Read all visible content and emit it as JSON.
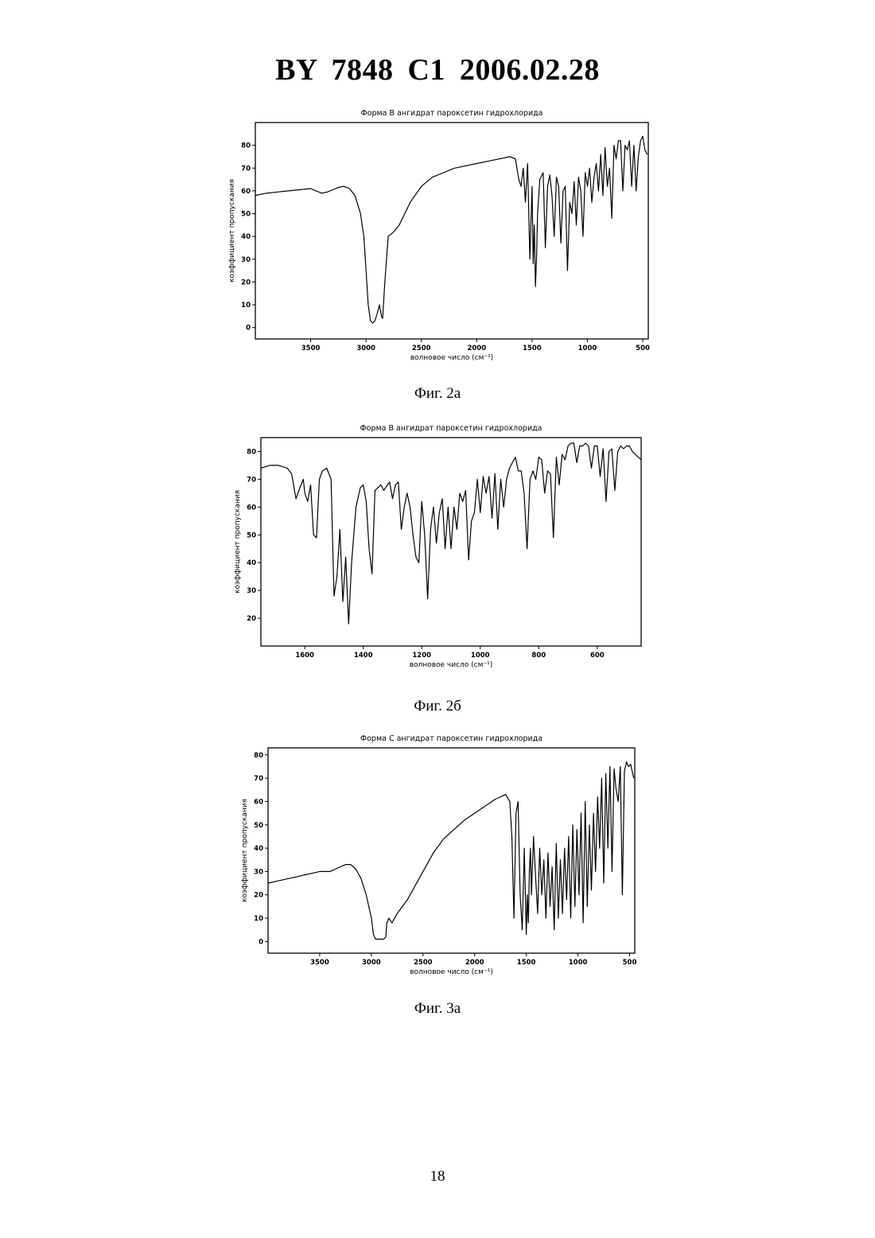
{
  "header": {
    "title": "BY  7848  C1  2006.02.28"
  },
  "page_number": "18",
  "figures": [
    {
      "caption": "Фиг. 2а"
    },
    {
      "caption": "Фиг. 2б"
    },
    {
      "caption": "Фиг. 3а"
    }
  ],
  "chart_data": [
    {
      "type": "line",
      "title": "Форма В ангидрат пароксетин гидрохлорида",
      "xlabel": "волновое число (см⁻¹)",
      "ylabel": "коэффициент пропускания",
      "xlim": [
        4000,
        450
      ],
      "ylim": [
        -5,
        90
      ],
      "x_ticks": [
        3500,
        3000,
        2500,
        2000,
        1500,
        1000,
        500
      ],
      "y_ticks": [
        0,
        10,
        20,
        30,
        40,
        50,
        60,
        70,
        80
      ],
      "grid": false,
      "series": [
        {
          "x": [
            4000,
            3900,
            3800,
            3700,
            3600,
            3500,
            3450,
            3400,
            3350,
            3300,
            3250,
            3200,
            3150,
            3100,
            3050,
            3020,
            3000,
            2980,
            2960,
            2940,
            2920,
            2900,
            2880,
            2860,
            2850,
            2830,
            2800,
            2750,
            2700,
            2650,
            2600,
            2500,
            2400,
            2300,
            2200,
            2100,
            2000,
            1900,
            1800,
            1700,
            1650,
            1620,
            1600,
            1580,
            1560,
            1540,
            1520,
            1500,
            1490,
            1480,
            1470,
            1460,
            1450,
            1430,
            1400,
            1380,
            1360,
            1340,
            1320,
            1300,
            1280,
            1260,
            1240,
            1220,
            1200,
            1180,
            1160,
            1140,
            1120,
            1100,
            1080,
            1060,
            1040,
            1020,
            1000,
            980,
            960,
            940,
            920,
            900,
            880,
            860,
            840,
            820,
            800,
            780,
            760,
            740,
            720,
            700,
            680,
            660,
            640,
            620,
            600,
            580,
            560,
            540,
            520,
            500,
            480,
            460
          ],
          "y": [
            58,
            59,
            59.5,
            60,
            60.5,
            61,
            60,
            59,
            59.5,
            60.5,
            61.5,
            62,
            61,
            58,
            50,
            40,
            25,
            10,
            3,
            2,
            3,
            6,
            10,
            5,
            4,
            20,
            40,
            42,
            45,
            50,
            55,
            62,
            66,
            68,
            70,
            71,
            72,
            73,
            74,
            75,
            74,
            65,
            62,
            70,
            55,
            72,
            30,
            62,
            28,
            45,
            18,
            30,
            50,
            65,
            68,
            35,
            62,
            67,
            58,
            40,
            66,
            62,
            37,
            60,
            62,
            25,
            55,
            50,
            64,
            45,
            66,
            60,
            40,
            68,
            62,
            70,
            55,
            66,
            72,
            60,
            76,
            58,
            79,
            62,
            70,
            48,
            80,
            74,
            82,
            82,
            60,
            80,
            78,
            82,
            62,
            80,
            60,
            75,
            82,
            84,
            78,
            76
          ]
        }
      ]
    },
    {
      "type": "line",
      "title": "Форма В ангидрат пароксетин гидрохлорида",
      "xlabel": "волновое число (см⁻¹)",
      "ylabel": "коэффициент пропускания",
      "xlim": [
        1750,
        450
      ],
      "ylim": [
        10,
        85
      ],
      "x_ticks": [
        1600,
        1400,
        1200,
        1000,
        800,
        600
      ],
      "y_ticks": [
        20,
        30,
        40,
        50,
        60,
        70,
        80
      ],
      "grid": false,
      "series": [
        {
          "x": [
            1750,
            1720,
            1690,
            1660,
            1645,
            1630,
            1620,
            1605,
            1600,
            1590,
            1580,
            1570,
            1560,
            1550,
            1540,
            1525,
            1510,
            1500,
            1490,
            1480,
            1470,
            1460,
            1450,
            1440,
            1425,
            1410,
            1400,
            1390,
            1380,
            1370,
            1360,
            1340,
            1330,
            1310,
            1300,
            1290,
            1280,
            1270,
            1260,
            1250,
            1240,
            1230,
            1220,
            1210,
            1200,
            1190,
            1180,
            1170,
            1160,
            1150,
            1140,
            1130,
            1120,
            1110,
            1100,
            1090,
            1080,
            1070,
            1060,
            1050,
            1040,
            1030,
            1020,
            1010,
            1000,
            990,
            980,
            970,
            960,
            950,
            940,
            930,
            920,
            910,
            900,
            890,
            880,
            870,
            860,
            850,
            840,
            830,
            820,
            810,
            800,
            790,
            780,
            770,
            760,
            750,
            740,
            730,
            720,
            710,
            700,
            690,
            680,
            670,
            660,
            650,
            640,
            630,
            620,
            610,
            600,
            590,
            580,
            570,
            560,
            550,
            540,
            530,
            520,
            510,
            500,
            490,
            480,
            470,
            460,
            450
          ],
          "y": [
            74,
            75,
            75,
            74,
            72,
            63,
            66,
            70,
            65,
            62,
            68,
            50,
            49,
            70,
            73,
            74,
            70,
            28,
            35,
            52,
            26,
            42,
            18,
            40,
            60,
            67,
            68,
            62,
            45,
            36,
            66,
            68,
            66,
            69,
            63,
            68,
            69,
            52,
            60,
            65,
            60,
            50,
            42,
            40,
            62,
            50,
            27,
            52,
            60,
            47,
            58,
            63,
            45,
            60,
            45,
            60,
            52,
            65,
            62,
            66,
            41,
            55,
            58,
            70,
            58,
            71,
            65,
            71,
            56,
            72,
            52,
            70,
            60,
            70,
            74,
            76,
            78,
            73,
            73,
            65,
            45,
            70,
            73,
            70,
            78,
            77,
            65,
            73,
            72,
            49,
            78,
            68,
            79,
            77,
            82,
            83,
            83,
            76,
            82,
            82,
            83,
            82,
            74,
            82,
            82,
            71,
            81,
            62,
            80,
            81,
            66,
            80,
            82,
            81,
            82,
            82,
            80,
            79,
            78,
            77
          ]
        }
      ]
    },
    {
      "type": "line",
      "title": "Форма С ангидрат пароксетин гидрохлорида",
      "xlabel": "волновое число (см⁻¹)",
      "ylabel": "коэффициент пропускания",
      "xlim": [
        4000,
        450
      ],
      "ylim": [
        -5,
        83
      ],
      "x_ticks": [
        3500,
        3000,
        2500,
        2000,
        1500,
        1000,
        500
      ],
      "y_ticks": [
        0,
        10,
        20,
        30,
        40,
        50,
        60,
        70,
        80
      ],
      "grid": false,
      "series": [
        {
          "x": [
            4000,
            3900,
            3800,
            3700,
            3600,
            3500,
            3450,
            3400,
            3350,
            3300,
            3250,
            3200,
            3150,
            3100,
            3050,
            3000,
            2980,
            2960,
            2940,
            2920,
            2900,
            2880,
            2860,
            2850,
            2830,
            2800,
            2750,
            2700,
            2650,
            2600,
            2500,
            2400,
            2300,
            2200,
            2100,
            2000,
            1900,
            1800,
            1700,
            1660,
            1640,
            1620,
            1600,
            1580,
            1560,
            1540,
            1520,
            1500,
            1490,
            1480,
            1470,
            1460,
            1450,
            1430,
            1410,
            1390,
            1370,
            1350,
            1330,
            1310,
            1290,
            1270,
            1250,
            1230,
            1210,
            1190,
            1170,
            1150,
            1130,
            1110,
            1090,
            1070,
            1050,
            1030,
            1010,
            990,
            970,
            950,
            930,
            910,
            890,
            870,
            850,
            830,
            810,
            790,
            770,
            750,
            730,
            710,
            690,
            670,
            650,
            630,
            610,
            590,
            570,
            550,
            530,
            510,
            490,
            470,
            460
          ],
          "y": [
            25,
            26,
            27,
            28,
            29,
            30,
            30,
            30,
            31,
            32,
            33,
            33,
            31,
            27,
            20,
            10,
            3,
            1,
            1,
            1,
            1,
            1,
            2,
            8,
            10,
            8,
            12,
            15,
            18,
            22,
            30,
            38,
            44,
            48,
            52,
            55,
            58,
            61,
            63,
            60,
            45,
            10,
            55,
            60,
            20,
            5,
            40,
            3,
            20,
            8,
            30,
            40,
            20,
            45,
            28,
            12,
            40,
            20,
            35,
            10,
            38,
            15,
            32,
            5,
            42,
            10,
            35,
            12,
            40,
            18,
            45,
            10,
            50,
            15,
            48,
            20,
            55,
            8,
            60,
            15,
            50,
            22,
            55,
            30,
            62,
            40,
            70,
            25,
            72,
            40,
            75,
            30,
            74,
            65,
            60,
            75,
            20,
            73,
            77,
            75,
            76,
            72,
            70
          ]
        }
      ]
    }
  ]
}
